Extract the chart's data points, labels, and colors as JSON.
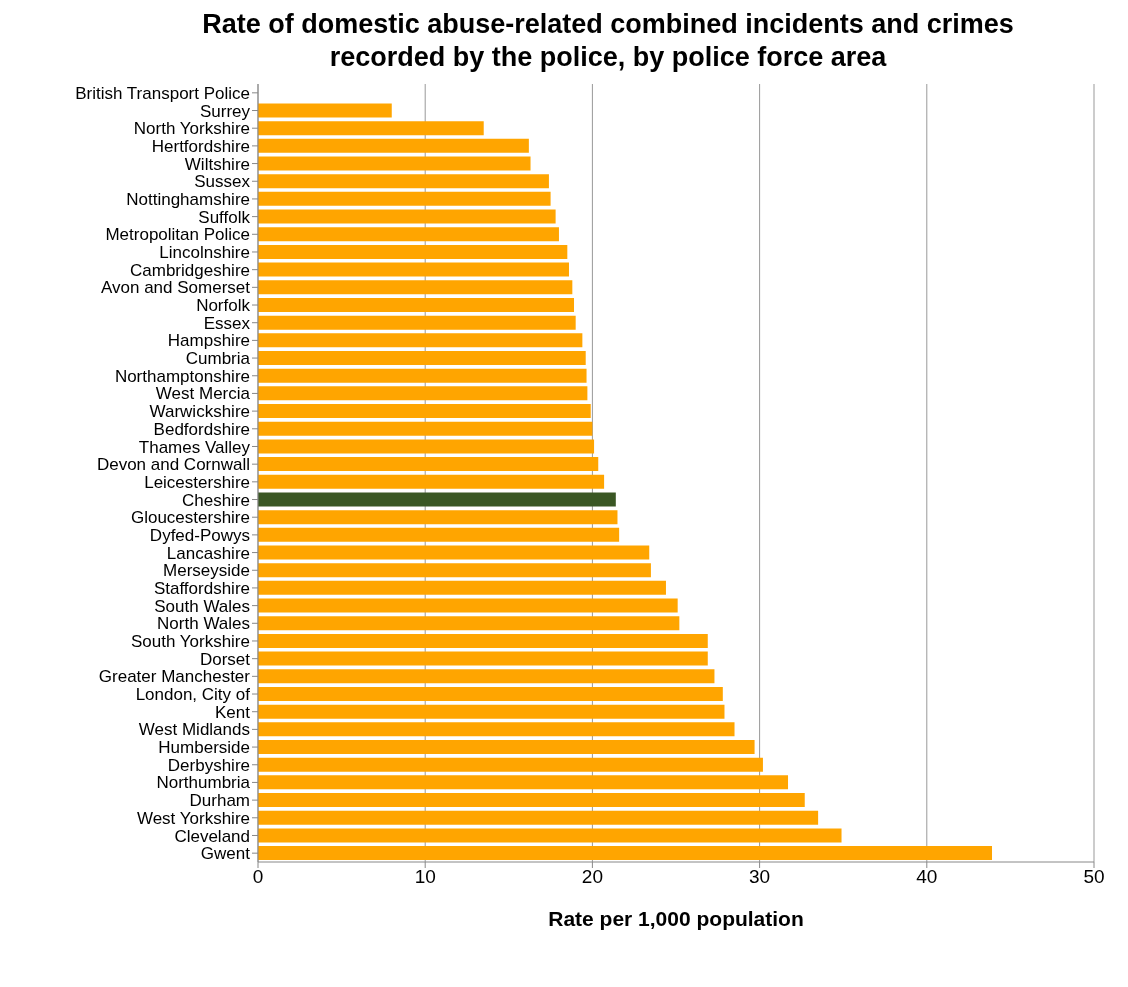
{
  "chart_data": {
    "type": "bar",
    "orientation": "horizontal",
    "title": "Rate of domestic abuse-related combined incidents and crimes recorded by the police, by police force area",
    "xlabel": "Rate per 1,000 population",
    "categories": [
      "British Transport Police",
      "Surrey",
      "North Yorkshire",
      "Hertfordshire",
      "Wiltshire",
      "Sussex",
      "Nottinghamshire",
      "Suffolk",
      "Metropolitan Police",
      "Lincolnshire",
      "Cambridgeshire",
      "Avon and Somerset",
      "Norfolk",
      "Essex",
      "Hampshire",
      "Cumbria",
      "Northamptonshire",
      "West Mercia",
      "Warwickshire",
      "Bedfordshire",
      "Thames Valley",
      "Devon and Cornwall",
      "Leicestershire",
      "Cheshire",
      "Gloucestershire",
      "Dyfed-Powys",
      "Lancashire",
      "Merseyside",
      "Staffordshire",
      "South Wales",
      "North Wales",
      "South Yorkshire",
      "Dorset",
      "Greater Manchester",
      "London, City of",
      "Kent",
      "West Midlands",
      "Humberside",
      "Derbyshire",
      "Northumbria",
      "Durham",
      "West Yorkshire",
      "Cleveland",
      "Gwent"
    ],
    "values": [
      null,
      8.0,
      13.5,
      16.2,
      16.3,
      17.4,
      17.5,
      17.8,
      18.0,
      18.5,
      18.6,
      18.8,
      18.9,
      19.0,
      19.4,
      19.6,
      19.65,
      19.7,
      19.9,
      20.0,
      20.1,
      20.35,
      20.7,
      21.4,
      21.5,
      21.6,
      23.4,
      23.5,
      24.4,
      25.1,
      25.2,
      26.9,
      26.9,
      27.3,
      27.8,
      27.9,
      28.5,
      29.7,
      30.2,
      31.7,
      32.7,
      33.5,
      34.9,
      43.9
    ],
    "colors": [
      "#ffa500",
      "#ffa500",
      "#ffa500",
      "#ffa500",
      "#ffa500",
      "#ffa500",
      "#ffa500",
      "#ffa500",
      "#ffa500",
      "#ffa500",
      "#ffa500",
      "#ffa500",
      "#ffa500",
      "#ffa500",
      "#ffa500",
      "#ffa500",
      "#ffa500",
      "#ffa500",
      "#ffa500",
      "#ffa500",
      "#ffa500",
      "#ffa500",
      "#ffa500",
      "#3a5724",
      "#ffa500",
      "#ffa500",
      "#ffa500",
      "#ffa500",
      "#ffa500",
      "#ffa500",
      "#ffa500",
      "#ffa500",
      "#ffa500",
      "#ffa500",
      "#ffa500",
      "#ffa500",
      "#ffa500",
      "#ffa500",
      "#ffa500",
      "#ffa500",
      "#ffa500",
      "#ffa500",
      "#ffa500",
      "#ffa500"
    ],
    "xlim": [
      0,
      50
    ],
    "xticks": [
      0,
      10,
      20,
      30,
      40,
      50
    ],
    "grid": "x"
  }
}
